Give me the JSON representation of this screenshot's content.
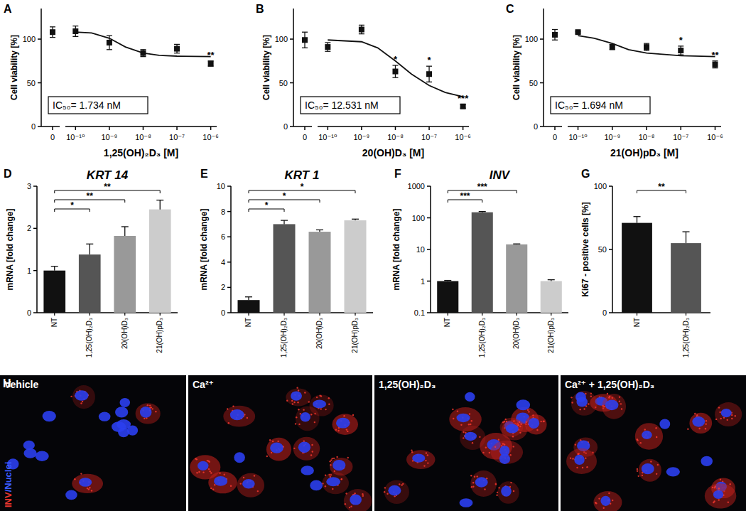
{
  "chart_data": [
    {
      "panel": "A",
      "type": "scatter",
      "log": "x",
      "color": "#111111",
      "marker": "square",
      "x": [
        0,
        1e-10,
        1e-09,
        1e-08,
        1e-07,
        1e-06
      ],
      "values": [
        108,
        109,
        96,
        84,
        89,
        72
      ],
      "errors": [
        6,
        6,
        8,
        4,
        5,
        3
      ],
      "significance": [
        null,
        null,
        null,
        null,
        null,
        "**"
      ],
      "fit": {
        "x": [
          1e-10,
          3e-10,
          1e-09,
          3e-09,
          1e-08,
          3e-08,
          1e-07,
          1e-06
        ],
        "values": [
          108,
          107,
          101,
          91,
          84,
          81.5,
          80.5,
          80
        ]
      },
      "annotation": "IC₅₀= 1.734 nM",
      "xlabel": "1,25(OH)₂D₃  [M]",
      "ylabel": "Cell viability [%]",
      "xlim": [
        5e-11,
        1.5e-06
      ],
      "ylim": [
        0,
        135
      ],
      "xticks": [
        {
          "value": 0,
          "label": "0"
        },
        {
          "value": 1e-10,
          "label": "10⁻¹⁰"
        },
        {
          "value": 1e-09,
          "label": "10⁻⁹"
        },
        {
          "value": 1e-08,
          "label": "10⁻⁸"
        },
        {
          "value": 1e-07,
          "label": "10⁻⁷"
        },
        {
          "value": 1e-06,
          "label": "10⁻⁶"
        }
      ],
      "yticks": [
        0,
        50,
        100
      ]
    },
    {
      "panel": "B",
      "type": "scatter",
      "log": "x",
      "color": "#111111",
      "marker": "square",
      "x": [
        0,
        1e-10,
        1e-09,
        1e-08,
        1e-07,
        1e-06
      ],
      "values": [
        99,
        91,
        111,
        63,
        60,
        23
      ],
      "errors": [
        9,
        5,
        5,
        7,
        9,
        2
      ],
      "significance": [
        null,
        null,
        null,
        "*",
        "*",
        "***"
      ],
      "fit": {
        "x": [
          1e-10,
          1e-09,
          3e-09,
          1e-08,
          3e-08,
          1e-07,
          3e-07,
          1e-06
        ],
        "values": [
          99,
          97,
          90,
          75,
          60,
          47,
          39,
          34
        ]
      },
      "annotation": "IC₅₀= 12.531 nM",
      "xlabel": "20(OH)D₃  [M]",
      "ylabel": "Cell viability [%]",
      "xlim": [
        5e-11,
        1.5e-06
      ],
      "ylim": [
        0,
        135
      ],
      "xticks": [
        {
          "value": 0,
          "label": "0"
        },
        {
          "value": 1e-10,
          "label": "10⁻¹⁰"
        },
        {
          "value": 1e-09,
          "label": "10⁻⁹"
        },
        {
          "value": 1e-08,
          "label": "10⁻⁸"
        },
        {
          "value": 1e-07,
          "label": "10⁻⁷"
        },
        {
          "value": 1e-06,
          "label": "10⁻⁶"
        }
      ],
      "yticks": [
        0,
        50,
        100
      ]
    },
    {
      "panel": "C",
      "type": "scatter",
      "log": "x",
      "color": "#111111",
      "marker": "square",
      "x": [
        0,
        1e-10,
        1e-09,
        1e-08,
        1e-07,
        1e-06
      ],
      "values": [
        105,
        108,
        91,
        91,
        87,
        71
      ],
      "errors": [
        6,
        1,
        3,
        4,
        5,
        4
      ],
      "significance": [
        null,
        null,
        null,
        null,
        "*",
        "**"
      ],
      "fit": {
        "x": [
          1e-10,
          3e-10,
          1e-09,
          3e-09,
          1e-08,
          1e-07,
          1e-06
        ],
        "values": [
          104,
          101,
          95,
          88,
          84,
          81,
          80
        ]
      },
      "annotation": "IC₅₀= 1.694 nM",
      "xlabel": "21(OH)pD₃  [M]",
      "ylabel": "Cell viability [%]",
      "xlim": [
        5e-11,
        1.5e-06
      ],
      "ylim": [
        0,
        135
      ],
      "xticks": [
        {
          "value": 0,
          "label": "0"
        },
        {
          "value": 1e-10,
          "label": "10⁻¹⁰"
        },
        {
          "value": 1e-09,
          "label": "10⁻⁹"
        },
        {
          "value": 1e-08,
          "label": "10⁻⁸"
        },
        {
          "value": 1e-07,
          "label": "10⁻⁷"
        },
        {
          "value": 1e-06,
          "label": "10⁻⁶"
        }
      ],
      "yticks": [
        0,
        50,
        100
      ]
    },
    {
      "panel": "D",
      "type": "bar",
      "title": "KRT 14",
      "categories": [
        "NT",
        "1,25(OH)₂D₃",
        "20(OH)D₃",
        "21(OH)pD₃"
      ],
      "values": [
        1.0,
        1.38,
        1.82,
        2.45
      ],
      "errors": [
        0.1,
        0.25,
        0.22,
        0.22
      ],
      "colors": [
        "#111111",
        "#555555",
        "#999999",
        "#cccccc"
      ],
      "comparisons": [
        {
          "from": 0,
          "to": 1,
          "label": "*"
        },
        {
          "from": 0,
          "to": 2,
          "label": "**"
        },
        {
          "from": 0,
          "to": 3,
          "label": "**"
        }
      ],
      "ylabel": "mRNA [fold change]",
      "ylim": [
        0,
        3
      ],
      "yticks": [
        0,
        1,
        2,
        3
      ]
    },
    {
      "panel": "E",
      "type": "bar",
      "title": "KRT 1",
      "categories": [
        "NT",
        "1,25(OH)₂D₃",
        "20(OH)D₃",
        "21(OH)pD₃"
      ],
      "values": [
        1.0,
        7.0,
        6.4,
        7.3
      ],
      "errors": [
        0.25,
        0.3,
        0.15,
        0.1
      ],
      "colors": [
        "#111111",
        "#555555",
        "#999999",
        "#cccccc"
      ],
      "comparisons": [
        {
          "from": 0,
          "to": 1,
          "label": "*"
        },
        {
          "from": 0,
          "to": 2,
          "label": "*"
        },
        {
          "from": 0,
          "to": 3,
          "label": "*"
        }
      ],
      "ylabel": "mRNA [fold change]",
      "ylim": [
        0,
        10
      ],
      "yticks": [
        0,
        2,
        4,
        6,
        8,
        10
      ]
    },
    {
      "panel": "F",
      "type": "bar",
      "title": "INV",
      "log": "y",
      "categories": [
        "NT",
        "1,25(OH)₂D₃",
        "20(OH)D₃",
        "21(OH)pD₃"
      ],
      "values": [
        1.0,
        150,
        14.5,
        1.0
      ],
      "errors": [
        0.05,
        8,
        0.5,
        0.1
      ],
      "colors": [
        "#111111",
        "#555555",
        "#999999",
        "#cccccc"
      ],
      "comparisons": [
        {
          "from": 0,
          "to": 1,
          "label": "***"
        },
        {
          "from": 0,
          "to": 2,
          "label": "***"
        }
      ],
      "ylabel": "mRNA [fold change]",
      "ylim": [
        0.1,
        1000
      ],
      "yticks": [
        0.1,
        1,
        10,
        100,
        1000
      ]
    },
    {
      "panel": "G",
      "type": "bar",
      "categories": [
        "NT",
        "1,25(OH)₂D₃"
      ],
      "values": [
        71,
        55
      ],
      "errors": [
        5,
        9
      ],
      "colors": [
        "#111111",
        "#555555"
      ],
      "comparisons": [
        {
          "from": 0,
          "to": 1,
          "label": "**"
        }
      ],
      "ylabel": "Ki67 - positive cells [%]",
      "ylim": [
        0,
        100
      ],
      "yticks": [
        0,
        50,
        100
      ]
    }
  ],
  "image_panel": {
    "panel": "H",
    "labels": [
      "Vehicle",
      "Ca²⁺",
      "1,25(OH)₂D₃",
      "Ca²⁺ + 1,25(OH)₂D₃"
    ],
    "stain_labels": [
      {
        "text": "INV",
        "color": "#e8352e"
      },
      {
        "text": "/Nuclei",
        "color": "#3a5bff"
      }
    ]
  }
}
